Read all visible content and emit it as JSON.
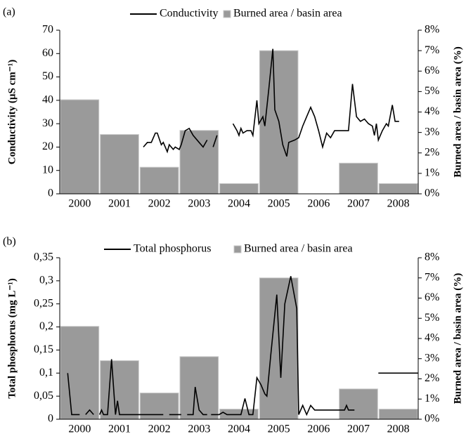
{
  "chart_data": [
    {
      "type": "combo",
      "title": "(a)",
      "ylabel": "Conductivity  (µS cm⁻¹)",
      "y2label": "Burned area / basin area (%)",
      "categories": [
        "2000",
        "2001",
        "2002",
        "2003",
        "2004",
        "2005",
        "2006",
        "2007",
        "2008"
      ],
      "xlim": [
        2000,
        2009
      ],
      "ylim": [
        0,
        70
      ],
      "yticks": [
        0,
        10,
        20,
        30,
        40,
        50,
        60,
        70
      ],
      "y2lim": [
        0,
        8
      ],
      "y2ticks": [
        {
          "value": 0,
          "label": "0%"
        },
        {
          "value": 1,
          "label": "1%"
        },
        {
          "value": 2,
          "label": "2%"
        },
        {
          "value": 3,
          "label": "3%"
        },
        {
          "value": 4,
          "label": "4%"
        },
        {
          "value": 5,
          "label": "5%"
        },
        {
          "value": 6,
          "label": "6%"
        },
        {
          "value": 7,
          "label": "7%"
        },
        {
          "value": 8,
          "label": "8%"
        }
      ],
      "series": [
        {
          "name": "Conductivity",
          "color": "#000000",
          "x": [
            2002.1,
            2002.2,
            2002.3,
            2002.4,
            2002.45,
            2002.55,
            2002.6,
            2002.7,
            2002.75,
            2002.85,
            2002.9,
            2003.0,
            2003.05,
            2003.15,
            2003.25,
            2003.35,
            2003.5,
            2003.6,
            2003.7,
            null,
            2003.85,
            2003.95,
            null,
            2004.35,
            2004.45,
            2004.5,
            2004.55,
            2004.6,
            2004.7,
            2004.8,
            2004.85,
            2004.95,
            2005.0,
            2005.1,
            2005.15,
            2005.25,
            2005.35,
            2005.4,
            2005.5,
            2005.6,
            2005.7,
            2005.75,
            2005.9,
            2006.0,
            2006.1,
            2006.2,
            2006.3,
            2006.4,
            2006.5,
            2006.6,
            2006.7,
            2006.8,
            2006.9,
            2007.1,
            2007.25,
            2007.35,
            2007.45,
            2007.55,
            2007.65,
            2007.75,
            2007.85,
            2007.9,
            2007.95,
            2008.0,
            2008.1,
            2008.2,
            2008.25,
            2008.35,
            2008.42,
            2008.52
          ],
          "values": [
            20,
            22,
            22,
            26,
            26,
            21,
            22,
            18,
            21,
            19,
            20,
            19,
            21,
            27,
            28,
            25,
            22,
            20,
            23,
            null,
            20,
            25,
            null,
            30,
            27,
            25,
            28,
            26,
            27,
            27,
            25,
            40,
            30,
            33,
            29,
            45,
            62,
            36,
            31,
            21,
            16,
            22,
            23,
            24,
            29,
            33,
            37,
            33,
            27,
            20,
            26,
            24,
            27,
            27,
            27,
            47,
            33,
            31,
            32,
            30,
            29,
            25,
            30,
            23,
            27,
            30,
            29,
            38,
            31,
            31
          ]
        },
        {
          "name": "Burned area / basin area",
          "color": "#9a9a9a",
          "axis": "y2",
          "values": [
            4.6,
            2.9,
            1.3,
            3.1,
            0.5,
            7.0,
            0,
            1.5,
            0.5
          ]
        }
      ]
    },
    {
      "type": "combo",
      "title": "(b)",
      "ylabel": "Total phosphorus (mg L⁻¹)",
      "y2label": "Burned area / basin area (%)",
      "categories": [
        "2000",
        "2001",
        "2002",
        "2003",
        "2004",
        "2005",
        "2006",
        "2007",
        "2008"
      ],
      "xlim": [
        2000,
        2009
      ],
      "ylim": [
        0,
        0.35
      ],
      "yticks": [
        0,
        {
          "value": 0.05,
          "label": "0,05"
        },
        {
          "value": 0.1,
          "label": "0,1"
        },
        {
          "value": 0.15,
          "label": "0,15"
        },
        {
          "value": 0.2,
          "label": "0,2"
        },
        {
          "value": 0.25,
          "label": "0,25"
        },
        {
          "value": 0.3,
          "label": "0,3"
        },
        {
          "value": 0.35,
          "label": "0,35"
        }
      ],
      "y2lim": [
        0,
        8
      ],
      "y2ticks": [
        {
          "value": 0,
          "label": "0%"
        },
        {
          "value": 1,
          "label": "1%"
        },
        {
          "value": 2,
          "label": "2%"
        },
        {
          "value": 3,
          "label": "3%"
        },
        {
          "value": 4,
          "label": "4%"
        },
        {
          "value": 5,
          "label": "5%"
        },
        {
          "value": 6,
          "label": "6%"
        },
        {
          "value": 7,
          "label": "7%"
        },
        {
          "value": 8,
          "label": "8%"
        }
      ],
      "series": [
        {
          "name": "Total phosphorus",
          "color": "#000000",
          "x": [
            2000.2,
            2000.3,
            2000.5,
            null,
            2000.65,
            2000.75,
            2000.85,
            null,
            2001.0,
            2001.05,
            2001.1,
            2001.2,
            2001.3,
            2001.4,
            2001.45,
            2001.5,
            2002.6,
            null,
            2002.75,
            2003.05,
            null,
            2003.2,
            2003.35,
            2003.4,
            2003.5,
            2003.6,
            2003.7,
            null,
            2003.8,
            2004.0,
            2004.1,
            2004.2,
            2004.55,
            2004.65,
            2004.75,
            2004.85,
            2004.95,
            2005.05,
            2005.15,
            2005.2,
            2005.3,
            2005.45,
            2005.55,
            2005.65,
            2005.8,
            2005.95,
            2006.0,
            2006.1,
            2006.2,
            2006.3,
            2006.4,
            2006.7,
            2007.0,
            2007.15,
            2007.2,
            2007.25,
            2007.4,
            null,
            2008.0,
            2009.0
          ],
          "values": [
            0.1,
            0.01,
            0.01,
            null,
            0.01,
            0.02,
            0.01,
            null,
            0.01,
            0.02,
            0.01,
            0.01,
            0.13,
            0.01,
            0.04,
            0.01,
            0.01,
            null,
            0.01,
            0.01,
            null,
            0.01,
            0.01,
            0.07,
            0.02,
            0.01,
            0.01,
            null,
            0.01,
            0.01,
            0.015,
            0.01,
            0.01,
            0.045,
            0.01,
            0.01,
            0.09,
            0.075,
            0.055,
            0.05,
            0.14,
            0.27,
            0.09,
            0.25,
            0.31,
            0.24,
            0.01,
            0.03,
            0.01,
            0.03,
            0.02,
            0.02,
            0.02,
            0.02,
            0.03,
            0.02,
            0.02,
            null,
            0.1,
            0.1
          ]
        },
        {
          "name": "Burned area / basin area",
          "color": "#9a9a9a",
          "axis": "y2",
          "values": [
            4.6,
            2.9,
            1.3,
            3.1,
            0.5,
            7.0,
            0,
            1.5,
            0.5
          ]
        }
      ]
    }
  ]
}
